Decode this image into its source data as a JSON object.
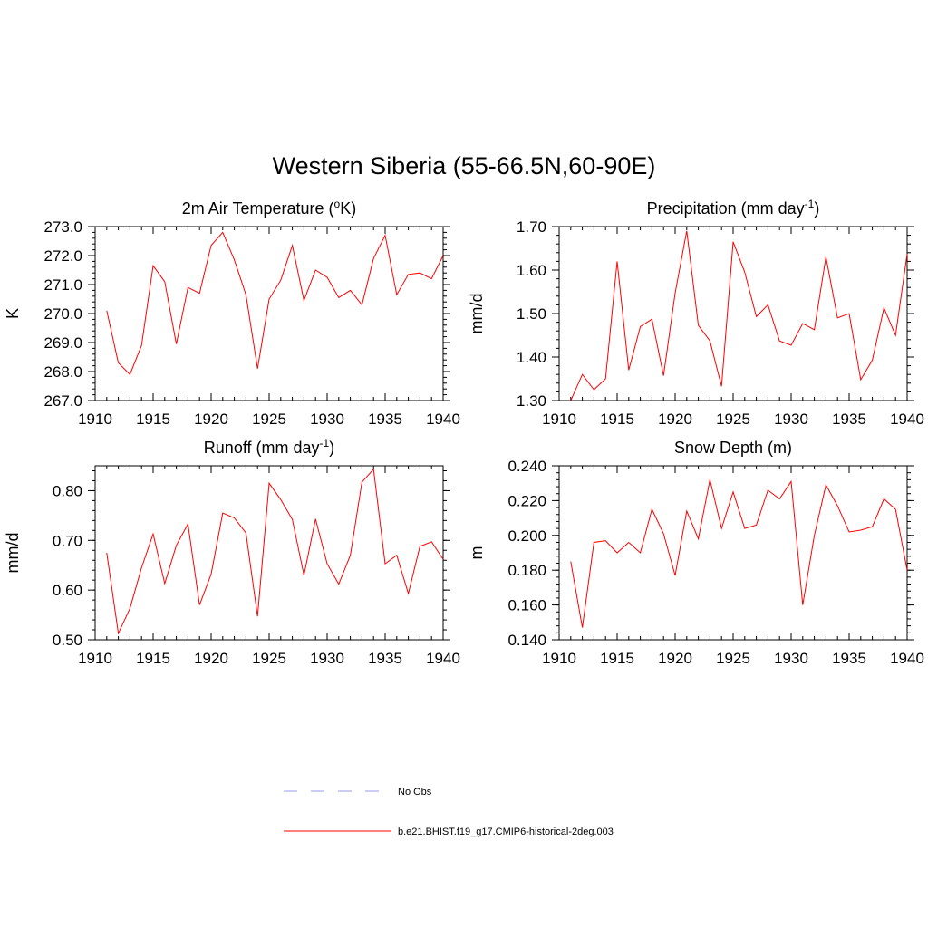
{
  "title": "Western Siberia (55-66.5N,60-90E)",
  "legend": {
    "items": [
      {
        "label": "No Obs",
        "color": "#9999ee",
        "dash": true
      },
      {
        "label": "b.e21.BHIST.f19_g17.CMIP6-historical-2deg.003",
        "color": "#ff0000",
        "dash": false
      }
    ]
  },
  "chart_data": [
    {
      "type": "line",
      "title": "2m Air Temperature (°K)",
      "title_main": "2m Air Temperature (",
      "title_sup": "o",
      "title_tail": "K)",
      "ylabel": "K",
      "xlim": [
        1910,
        1940
      ],
      "ylim": [
        267.0,
        273.0
      ],
      "xticks": [
        1910,
        1915,
        1920,
        1925,
        1930,
        1935,
        1940
      ],
      "yticks": [
        "267.0",
        "268.0",
        "269.0",
        "270.0",
        "271.0",
        "272.0",
        "273.0"
      ],
      "x": [
        1911,
        1912,
        1913,
        1914,
        1915,
        1916,
        1917,
        1918,
        1919,
        1920,
        1921,
        1922,
        1923,
        1924,
        1925,
        1926,
        1927,
        1928,
        1929,
        1930,
        1931,
        1932,
        1933,
        1934,
        1935,
        1936,
        1937,
        1938,
        1939,
        1940
      ],
      "series": [
        {
          "name": "b.e21.BHIST.f19_g17.CMIP6-historical-2deg.003",
          "color": "#ff0000",
          "values": [
            270.1,
            268.3,
            267.9,
            268.9,
            271.65,
            271.1,
            268.95,
            270.9,
            270.7,
            272.35,
            272.8,
            271.85,
            270.65,
            268.1,
            270.5,
            271.15,
            272.35,
            270.45,
            271.5,
            271.25,
            270.55,
            270.8,
            270.3,
            271.9,
            272.7,
            270.65,
            271.35,
            271.4,
            271.2,
            272.0
          ]
        }
      ]
    },
    {
      "type": "line",
      "title": "Precipitation (mm day-1)",
      "title_main": "Precipitation (mm day",
      "title_sup": "-1",
      "title_tail": ")",
      "ylabel": "mm/d",
      "xlim": [
        1910,
        1940
      ],
      "ylim": [
        1.3,
        1.7
      ],
      "xticks": [
        1910,
        1915,
        1920,
        1925,
        1930,
        1935,
        1940
      ],
      "yticks": [
        "1.30",
        "1.40",
        "1.50",
        "1.60",
        "1.70"
      ],
      "x": [
        1911,
        1912,
        1913,
        1914,
        1915,
        1916,
        1917,
        1918,
        1919,
        1920,
        1921,
        1922,
        1923,
        1924,
        1925,
        1926,
        1927,
        1928,
        1929,
        1930,
        1931,
        1932,
        1933,
        1934,
        1935,
        1936,
        1937,
        1938,
        1939,
        1940
      ],
      "series": [
        {
          "name": "b.e21.BHIST.f19_g17.CMIP6-historical-2deg.003",
          "color": "#ff0000",
          "values": [
            1.3,
            1.36,
            1.325,
            1.35,
            1.62,
            1.37,
            1.47,
            1.487,
            1.357,
            1.547,
            1.69,
            1.473,
            1.437,
            1.333,
            1.665,
            1.595,
            1.493,
            1.52,
            1.437,
            1.427,
            1.477,
            1.463,
            1.63,
            1.49,
            1.5,
            1.348,
            1.393,
            1.513,
            1.45,
            1.637
          ]
        }
      ]
    },
    {
      "type": "line",
      "title": "Runoff (mm day-1)",
      "title_main": "Runoff (mm day",
      "title_sup": "-1",
      "title_tail": ")",
      "ylabel": "mm/d",
      "xlim": [
        1910,
        1940
      ],
      "ylim": [
        0.5,
        0.85
      ],
      "xticks": [
        1910,
        1915,
        1920,
        1925,
        1930,
        1935,
        1940
      ],
      "yticks": [
        "0.50",
        "0.60",
        "0.70",
        "0.80"
      ],
      "yticks_values": [
        0.5,
        0.6,
        0.7,
        0.8
      ],
      "x": [
        1911,
        1912,
        1913,
        1914,
        1915,
        1916,
        1917,
        1918,
        1919,
        1920,
        1921,
        1922,
        1923,
        1924,
        1925,
        1926,
        1927,
        1928,
        1929,
        1930,
        1931,
        1932,
        1933,
        1934,
        1935,
        1936,
        1937,
        1938,
        1939,
        1940
      ],
      "series": [
        {
          "name": "b.e21.BHIST.f19_g17.CMIP6-historical-2deg.003",
          "color": "#ff0000",
          "values": [
            0.675,
            0.513,
            0.563,
            0.645,
            0.713,
            0.613,
            0.69,
            0.733,
            0.57,
            0.632,
            0.755,
            0.745,
            0.715,
            0.547,
            0.815,
            0.782,
            0.742,
            0.63,
            0.743,
            0.653,
            0.612,
            0.67,
            0.817,
            0.843,
            0.653,
            0.67,
            0.593,
            0.688,
            0.697,
            0.662
          ]
        }
      ]
    },
    {
      "type": "line",
      "title": "Snow Depth (m)",
      "title_main": "Snow Depth (m)",
      "title_sup": "",
      "title_tail": "",
      "ylabel": "m",
      "xlim": [
        1910,
        1940
      ],
      "ylim": [
        0.14,
        0.24
      ],
      "xticks": [
        1910,
        1915,
        1920,
        1925,
        1930,
        1935,
        1940
      ],
      "yticks": [
        "0.140",
        "0.160",
        "0.180",
        "0.200",
        "0.220",
        "0.240"
      ],
      "x": [
        1911,
        1912,
        1913,
        1914,
        1915,
        1916,
        1917,
        1918,
        1919,
        1920,
        1921,
        1922,
        1923,
        1924,
        1925,
        1926,
        1927,
        1928,
        1929,
        1930,
        1931,
        1932,
        1933,
        1934,
        1935,
        1936,
        1937,
        1938,
        1939,
        1940
      ],
      "series": [
        {
          "name": "b.e21.BHIST.f19_g17.CMIP6-historical-2deg.003",
          "color": "#ff0000",
          "values": [
            0.185,
            0.147,
            0.196,
            0.197,
            0.19,
            0.196,
            0.19,
            0.215,
            0.201,
            0.177,
            0.214,
            0.198,
            0.232,
            0.204,
            0.225,
            0.204,
            0.206,
            0.226,
            0.221,
            0.231,
            0.16,
            0.2,
            0.229,
            0.217,
            0.202,
            0.203,
            0.205,
            0.221,
            0.215,
            0.18
          ]
        }
      ]
    }
  ]
}
